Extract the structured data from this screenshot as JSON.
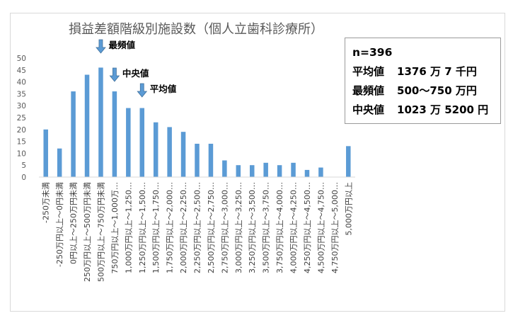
{
  "chart_data": {
    "type": "bar",
    "title": "損益差額階級別施設数（個人立歯科診療所）",
    "xlabel": "",
    "ylabel": "",
    "ylim": [
      0,
      50
    ],
    "yticks": [
      0,
      5,
      10,
      15,
      20,
      25,
      30,
      35,
      40,
      45,
      50
    ],
    "grid": false,
    "bar_color": "#5b9bd5",
    "categories": [
      "-250万未満",
      "-250万円以上～0円未満",
      "0円以上～250万円未満",
      "250万円以上～500万円未満",
      "500万円以上～750万円未満",
      "750万円以上～1,000万…",
      "1,000万円以上～1,250…",
      "1,250万円以上～1,500…",
      "1,500万円以上～1,750…",
      "1,750万円以上～2,000…",
      "2,000万円以上～2,250…",
      "2,250万円以上～2,500…",
      "2,500万円以上～2,750…",
      "2,750万円以上～3,000…",
      "3,000万円以上～3,250…",
      "3,250万円以上～3,500…",
      "3,500万円以上～3,750…",
      "3,750万円以上～4,000…",
      "4,000万円以上～4,250…",
      "4,250万円以上～4,500…",
      "4,500万円以上～4,750…",
      "4,750万円以上～5,000…",
      "5,000万円以上"
    ],
    "values": [
      20,
      12,
      36,
      43,
      46,
      36,
      29,
      29,
      23,
      21,
      19,
      14,
      14,
      7,
      5,
      5,
      6,
      5,
      6,
      3,
      4,
      0,
      13
    ],
    "annotations": [
      {
        "label": "最頻値",
        "category_index": 4,
        "arrow_color": "#5b9bd5"
      },
      {
        "label": "中央値",
        "category_index": 5,
        "arrow_color": "#5b9bd5"
      },
      {
        "label": "平均値",
        "category_index": 7,
        "arrow_color": "#5b9bd5"
      }
    ]
  },
  "stats_box": {
    "n": "n=396",
    "rows": [
      {
        "label": "平均値",
        "value": "1376 万 7 千円"
      },
      {
        "label": "最頻値",
        "value": "500～750 万円"
      },
      {
        "label": "中央値",
        "value": "1023 万 5200 円"
      }
    ]
  }
}
